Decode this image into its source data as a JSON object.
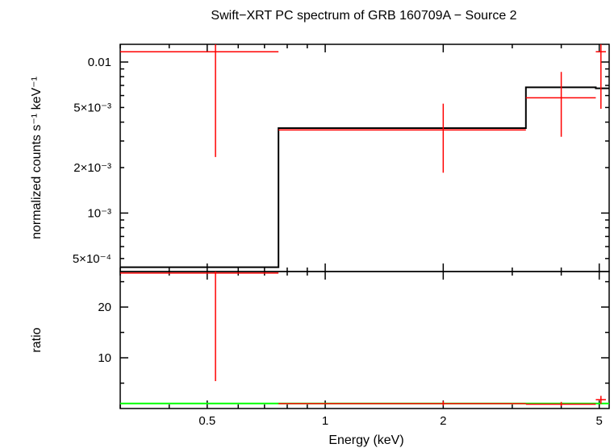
{
  "title": "Swift−XRT PC spectrum of GRB 160709A − Source 2",
  "colors": {
    "data": "#ff0000",
    "model": "#000000",
    "unity": "#00ff00",
    "axes": "#000000"
  },
  "chart_data": [
    {
      "panel": "top",
      "type": "scatter",
      "xscale": "log",
      "yscale": "log",
      "xlim": [
        0.3,
        5.3
      ],
      "ylim": [
        0.00041,
        0.0131
      ],
      "xlabel": "",
      "ylabel": "normalized counts s⁻¹ keV⁻¹",
      "ytick_labels": [
        "0.01",
        "5×10⁻³",
        "2×10⁻³",
        "10⁻³",
        "5×10⁻⁴"
      ],
      "ytick_values": [
        0.01,
        0.005,
        0.002,
        0.001,
        0.0005
      ],
      "data_points": [
        {
          "x": 0.525,
          "xerr": [
            0.3,
            0.76
          ],
          "y": 0.0117,
          "yerr": [
            0.00235,
            0.0131
          ]
        },
        {
          "x": 2.0,
          "xerr": [
            0.76,
            3.25
          ],
          "y": 0.00355,
          "yerr": [
            0.00185,
            0.0053
          ]
        },
        {
          "x": 4.0,
          "xerr": [
            3.25,
            4.9
          ],
          "y": 0.0058,
          "yerr": [
            0.0032,
            0.0086
          ]
        },
        {
          "x": 5.05,
          "xerr": [
            4.9,
            5.2
          ],
          "y": 0.0117,
          "yerr": [
            0.0049,
            0.0131
          ]
        }
      ],
      "model_steps": [
        {
          "x0": 0.3,
          "x1": 0.76,
          "y": 0.000438
        },
        {
          "x0": 0.76,
          "x1": 3.25,
          "y": 0.00365
        },
        {
          "x0": 3.25,
          "x1": 4.9,
          "y": 0.0068
        },
        {
          "x0": 4.9,
          "x1": 5.3,
          "y": 0.0067
        }
      ]
    },
    {
      "panel": "bottom",
      "type": "scatter",
      "xscale": "log",
      "yscale": "linear",
      "xlim": [
        0.3,
        5.3
      ],
      "ylim": [
        0.0,
        27.0
      ],
      "xlabel": "Energy (keV)",
      "ylabel": "ratio",
      "xtick_labels": [
        "0.5",
        "1",
        "2",
        "5"
      ],
      "xtick_values": [
        0.5,
        1,
        2,
        5
      ],
      "ytick_labels": [
        "10",
        "20"
      ],
      "ytick_values": [
        10,
        20
      ],
      "unity_line": 1,
      "data_points": [
        {
          "x": 0.525,
          "xerr": [
            0.3,
            0.76
          ],
          "y": 26.7,
          "yerr": [
            5.4,
            27.0
          ]
        },
        {
          "x": 2.0,
          "xerr": [
            0.76,
            3.25
          ],
          "y": 0.97,
          "yerr": [
            0.6,
            1.45
          ]
        },
        {
          "x": 4.0,
          "xerr": [
            3.25,
            4.9
          ],
          "y": 0.85,
          "yerr": [
            0.5,
            1.3
          ]
        },
        {
          "x": 5.05,
          "xerr": [
            4.9,
            5.2
          ],
          "y": 1.75,
          "yerr": [
            0.9,
            2.5
          ]
        }
      ]
    }
  ]
}
